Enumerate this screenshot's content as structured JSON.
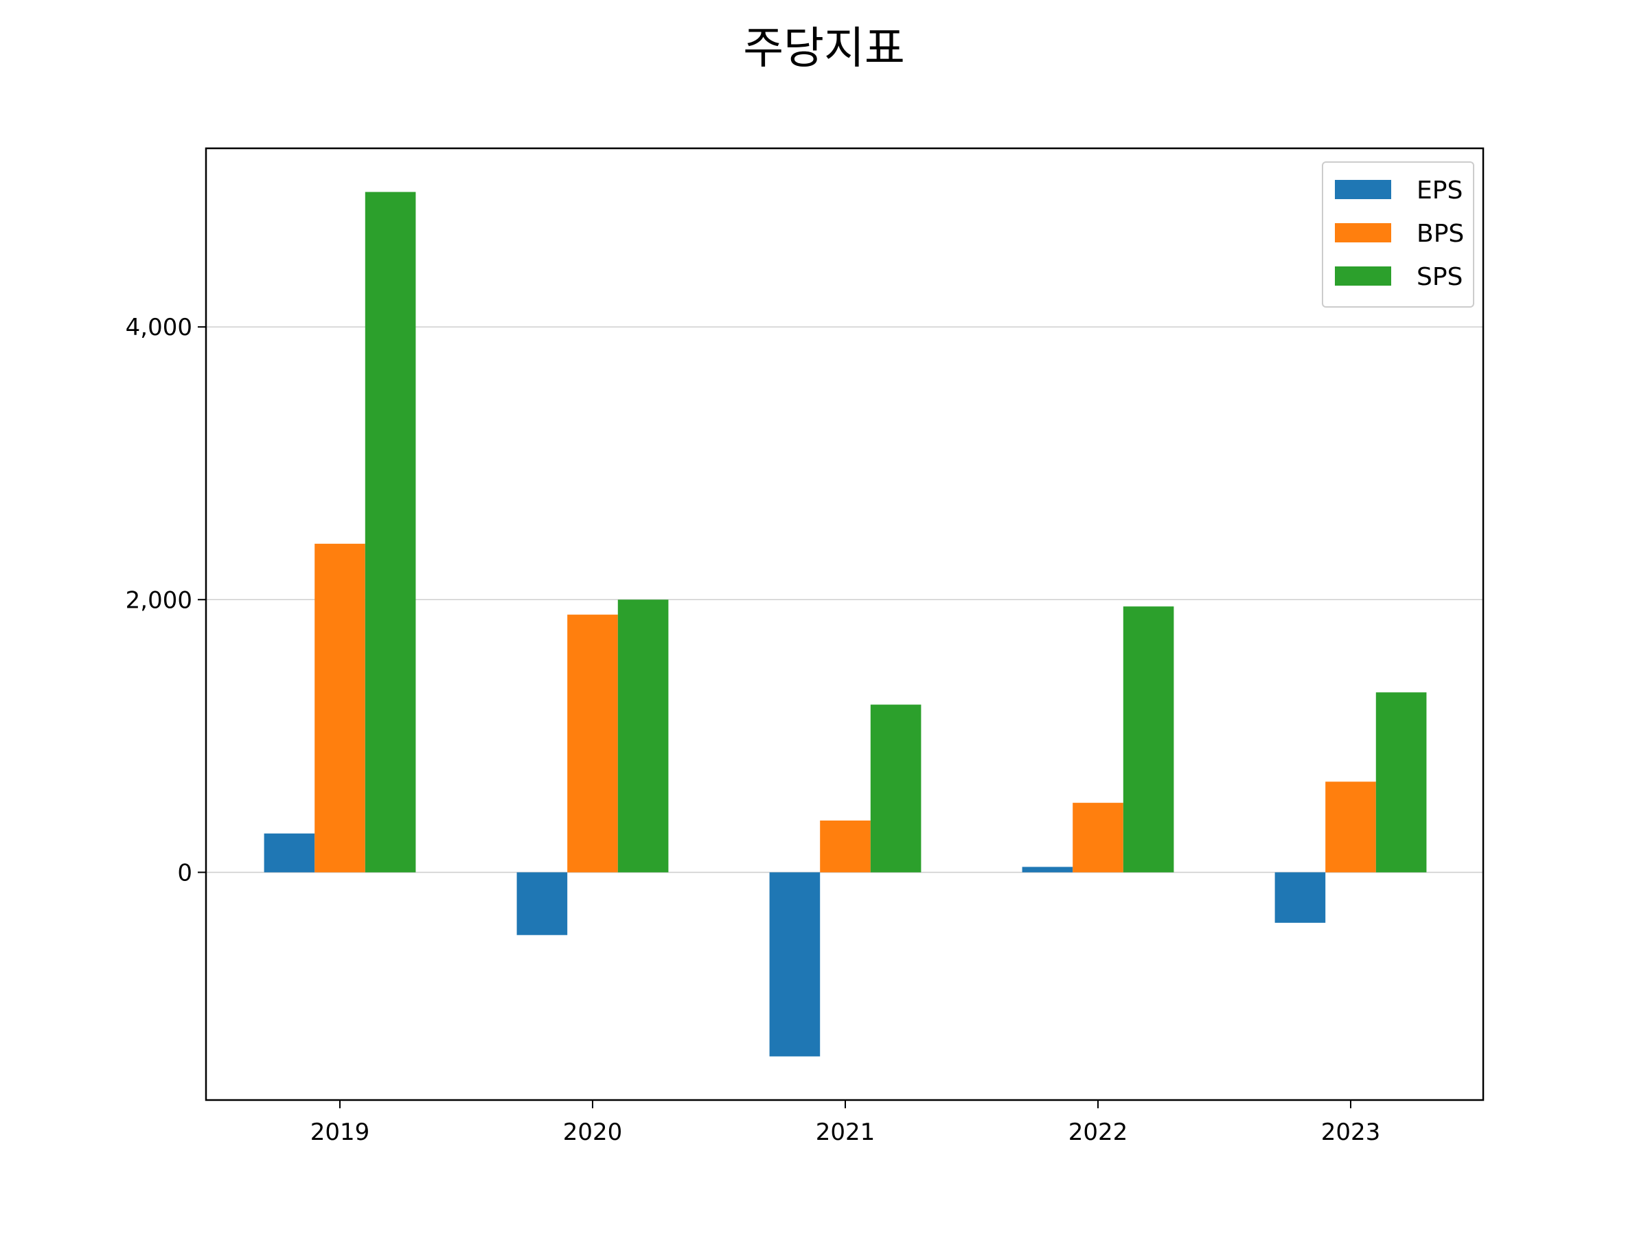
{
  "chart_data": {
    "type": "bar",
    "title": "주당지표",
    "xlabel": "",
    "ylabel": "",
    "categories": [
      "2019",
      "2020",
      "2021",
      "2022",
      "2023"
    ],
    "series": [
      {
        "name": "EPS",
        "color": "#1f77b4",
        "values": [
          285,
          -460,
          -1350,
          40,
          -370
        ]
      },
      {
        "name": "BPS",
        "color": "#ff7f0e",
        "values": [
          2410,
          1890,
          380,
          510,
          665
        ]
      },
      {
        "name": "SPS",
        "color": "#2ca02c",
        "values": [
          4990,
          2000,
          1230,
          1950,
          1320
        ]
      }
    ],
    "yticks": [
      0,
      2000,
      4000
    ],
    "ytick_labels": [
      "0",
      "2,000",
      "4,000"
    ],
    "ylim": [
      -1670,
      5310
    ],
    "grid": "y",
    "legend": "top-right"
  }
}
